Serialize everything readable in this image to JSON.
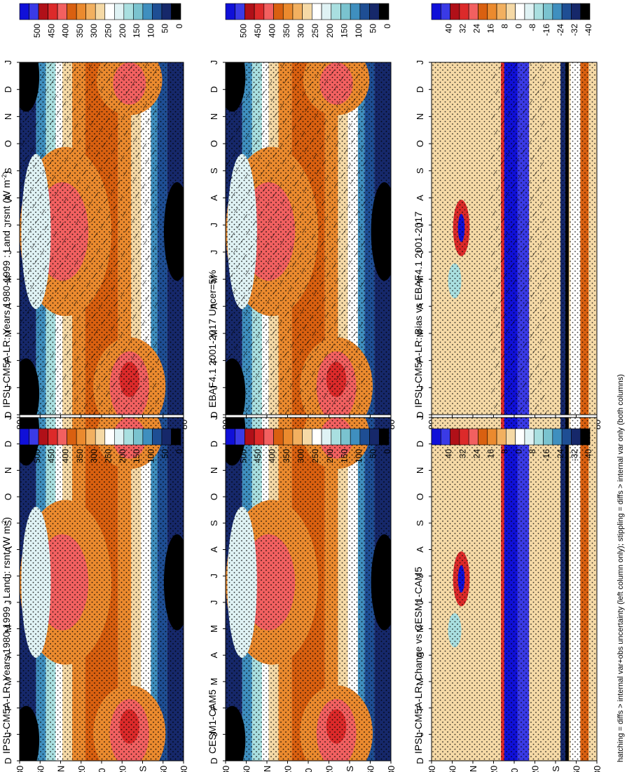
{
  "figure": {
    "footer_note": "hatching = diffs > internal var+obs uncertainty (left column only); stippling = diffs > internal var only (both columns)"
  },
  "chart_data": [
    {
      "type": "heatmap",
      "title": "IPSL-CM5A-LR: Years 1980-1999 : Land : rsnt (W m",
      "title_sup": "-2",
      "title_tail": ")",
      "x_ticks": [
        "D",
        "J",
        "F",
        "M",
        "A",
        "M",
        "J",
        "J",
        "A",
        "S",
        "O",
        "N",
        "D",
        "J"
      ],
      "y_ticks": [
        "80",
        "60",
        "°N",
        "20",
        "0",
        "20",
        "°S",
        "60",
        "80"
      ],
      "colorbar_labels": [
        "500",
        "450",
        "400",
        "350",
        "300",
        "250",
        "200",
        "150",
        "100",
        "50",
        "0"
      ],
      "colorbar_colors": [
        "#1010d8",
        "#3a3ae6",
        "#b01018",
        "#dc2a2a",
        "#f26060",
        "#d96010",
        "#eb8a2e",
        "#f2b060",
        "#f5d9a6",
        "#ffffff",
        "#dff2f4",
        "#a9dfe0",
        "#7ac3cf",
        "#3f8fbf",
        "#1e4e94",
        "#16286a",
        "#000000"
      ],
      "y_range": [
        -90,
        90
      ],
      "months": [
        "Dec",
        "Jan",
        "Feb",
        "Mar",
        "Apr",
        "May",
        "Jun",
        "Jul",
        "Aug",
        "Sep",
        "Oct",
        "Nov",
        "Dec",
        "Jan"
      ],
      "overlay": [
        "hatching",
        "stippling"
      ]
    },
    {
      "type": "heatmap",
      "title": "IPSL-CM5A-LR: Years 1980-1999 : Land : rsnt (W m",
      "title_sup": "-2",
      "title_tail": ")",
      "x_ticks": [
        "D",
        "J",
        "F",
        "M",
        "A",
        "M",
        "J",
        "J",
        "A",
        "S",
        "O",
        "N",
        "D",
        "J"
      ],
      "y_ticks": [
        "80",
        "60",
        "°N",
        "20",
        "0",
        "20",
        "°S",
        "60",
        "80"
      ],
      "colorbar_labels": [
        "500",
        "450",
        "400",
        "350",
        "300",
        "250",
        "200",
        "150",
        "100",
        "50",
        "0"
      ],
      "colorbar_colors": [
        "#1010d8",
        "#3a3ae6",
        "#b01018",
        "#dc2a2a",
        "#f26060",
        "#d96010",
        "#eb8a2e",
        "#f2b060",
        "#f5d9a6",
        "#ffffff",
        "#dff2f4",
        "#a9dfe0",
        "#7ac3cf",
        "#3f8fbf",
        "#1e4e94",
        "#16286a",
        "#000000"
      ],
      "y_range": [
        -90,
        90
      ],
      "overlay": [
        "stippling"
      ]
    },
    {
      "type": "heatmap",
      "title": "EBAF4.1 2001-2017 Uncer=5%",
      "x_ticks": [
        "D",
        "J",
        "F",
        "M",
        "A",
        "M",
        "J",
        "J",
        "A",
        "S",
        "O",
        "N",
        "D",
        "J"
      ],
      "y_ticks": [
        "80",
        "60",
        "°N",
        "20",
        "0",
        "20",
        "°S",
        "60",
        "80"
      ],
      "colorbar_labels": [
        "500",
        "450",
        "400",
        "350",
        "300",
        "250",
        "200",
        "150",
        "100",
        "50",
        "0"
      ],
      "colorbar_colors": [
        "#1010d8",
        "#3a3ae6",
        "#b01018",
        "#dc2a2a",
        "#f26060",
        "#d96010",
        "#eb8a2e",
        "#f2b060",
        "#f5d9a6",
        "#ffffff",
        "#dff2f4",
        "#a9dfe0",
        "#7ac3cf",
        "#3f8fbf",
        "#1e4e94",
        "#16286a",
        "#000000"
      ],
      "y_range": [
        -90,
        90
      ],
      "overlay": [
        "hatching",
        "stippling"
      ]
    },
    {
      "type": "heatmap",
      "title": "CESM1-CAM5",
      "x_ticks": [
        "D",
        "J",
        "F",
        "M",
        "A",
        "M",
        "J",
        "J",
        "A",
        "S",
        "O",
        "N",
        "D",
        "J"
      ],
      "y_ticks": [
        "80",
        "60",
        "°N",
        "20",
        "0",
        "20",
        "°S",
        "60",
        "80"
      ],
      "colorbar_labels": [
        "500",
        "450",
        "400",
        "350",
        "300",
        "250",
        "200",
        "150",
        "100",
        "50",
        "0"
      ],
      "colorbar_colors": [
        "#1010d8",
        "#3a3ae6",
        "#b01018",
        "#dc2a2a",
        "#f26060",
        "#d96010",
        "#eb8a2e",
        "#f2b060",
        "#f5d9a6",
        "#ffffff",
        "#dff2f4",
        "#a9dfe0",
        "#7ac3cf",
        "#3f8fbf",
        "#1e4e94",
        "#16286a",
        "#000000"
      ],
      "y_range": [
        -90,
        90
      ],
      "overlay": [
        "stippling"
      ]
    },
    {
      "type": "heatmap",
      "title": "IPSL-CM5A-LR: Bias vs EBAF4.1 2001-2017",
      "x_ticks": [
        "D",
        "J",
        "F",
        "M",
        "A",
        "M",
        "J",
        "J",
        "A",
        "S",
        "O",
        "N",
        "D",
        "J"
      ],
      "y_ticks": [
        "80",
        "60",
        "°N",
        "20",
        "0",
        "20",
        "°S",
        "60",
        "80"
      ],
      "colorbar_labels": [
        "40",
        "32",
        "24",
        "16",
        "8",
        "0",
        "-8",
        "-16",
        "-24",
        "-32",
        "-40"
      ],
      "colorbar_colors": [
        "#1010d8",
        "#3a3ae6",
        "#b01018",
        "#dc2a2a",
        "#f26060",
        "#d96010",
        "#eb8a2e",
        "#f2b060",
        "#f5d9a6",
        "#ffffff",
        "#dff2f4",
        "#a9dfe0",
        "#7ac3cf",
        "#3f8fbf",
        "#1e4e94",
        "#16286a",
        "#000000"
      ],
      "y_range": [
        -90,
        90
      ],
      "overlay": [
        "hatching",
        "stippling"
      ]
    },
    {
      "type": "heatmap",
      "title": "IPSL-CM5A-LR: Change vs CESM1-CAM5",
      "x_ticks": [
        "D",
        "J",
        "F",
        "M",
        "A",
        "M",
        "J",
        "J",
        "A",
        "S",
        "O",
        "N",
        "D",
        "J"
      ],
      "y_ticks": [
        "80",
        "60",
        "°N",
        "20",
        "0",
        "20",
        "°S",
        "60",
        "80"
      ],
      "colorbar_labels": [
        "40",
        "32",
        "24",
        "16",
        "8",
        "0",
        "-8",
        "-16",
        "-24",
        "-32",
        "-40"
      ],
      "colorbar_colors": [
        "#1010d8",
        "#3a3ae6",
        "#b01018",
        "#dc2a2a",
        "#f26060",
        "#d96010",
        "#eb8a2e",
        "#f2b060",
        "#f5d9a6",
        "#ffffff",
        "#dff2f4",
        "#a9dfe0",
        "#7ac3cf",
        "#3f8fbf",
        "#1e4e94",
        "#16286a",
        "#000000"
      ],
      "y_range": [
        -90,
        90
      ],
      "overlay": [
        "stippling"
      ]
    }
  ]
}
